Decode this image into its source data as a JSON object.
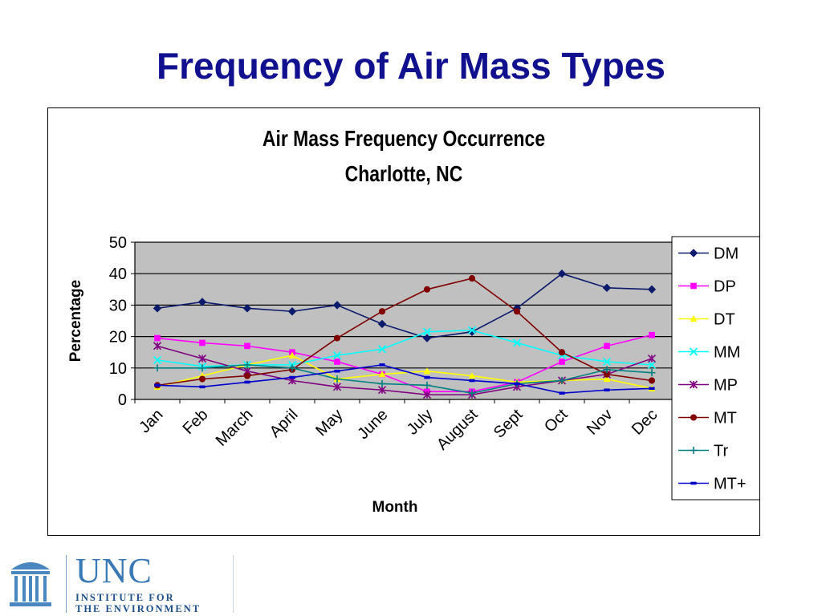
{
  "slide": {
    "title": "Frequency of Air Mass Types"
  },
  "chart_data": {
    "type": "line",
    "title": "Air Mass Frequency Occurrence",
    "subtitle": "Charlotte, NC",
    "xlabel": "Month",
    "ylabel": "Percentage",
    "ylim": [
      0,
      50
    ],
    "yticks": [
      "0",
      "10",
      "20",
      "30",
      "40",
      "50"
    ],
    "grid": true,
    "legend": "right",
    "categories": [
      "Jan",
      "Feb",
      "March",
      "April",
      "May",
      "June",
      "July",
      "August",
      "Sept",
      "Oct",
      "Nov",
      "Dec"
    ],
    "series": [
      {
        "name": "DM",
        "color": "#0b1a6b",
        "marker": "diamond",
        "values": [
          29,
          31,
          29,
          28,
          30,
          24,
          19.5,
          21.5,
          29,
          40,
          35.5,
          35
        ]
      },
      {
        "name": "DP",
        "color": "#ff00ff",
        "marker": "square",
        "values": [
          19.5,
          18,
          17,
          15,
          12,
          8,
          2.5,
          2.5,
          5.5,
          12,
          17,
          20.5
        ]
      },
      {
        "name": "DT",
        "color": "#ffff00",
        "marker": "triangle",
        "values": [
          4,
          7.5,
          11,
          14,
          6.5,
          8,
          9,
          7.5,
          5.5,
          6,
          6.5,
          3.5
        ]
      },
      {
        "name": "MM",
        "color": "#00ffff",
        "marker": "x",
        "values": [
          12.5,
          10.5,
          11,
          11,
          14,
          16,
          21.5,
          22,
          18,
          14,
          12,
          11
        ]
      },
      {
        "name": "MP",
        "color": "#800080",
        "marker": "asterisk",
        "values": [
          17,
          13,
          9,
          6,
          4,
          3,
          1.5,
          1.5,
          4,
          6,
          8,
          13
        ]
      },
      {
        "name": "MT",
        "color": "#800000",
        "marker": "circle",
        "values": [
          4.5,
          6.5,
          7.5,
          9.5,
          19.5,
          28,
          35,
          38.5,
          28,
          15,
          8,
          6
        ]
      },
      {
        "name": "Tr",
        "color": "#008080",
        "marker": "plus",
        "values": [
          10,
          10,
          11,
          10,
          6.5,
          5,
          4.5,
          2,
          5,
          6,
          9.5,
          8.5
        ]
      },
      {
        "name": "MT+",
        "color": "#0000cd",
        "marker": "dash",
        "values": [
          4.5,
          4,
          5.5,
          7,
          9,
          11,
          7,
          6,
          5,
          2,
          3,
          3.5
        ]
      }
    ]
  },
  "logo": {
    "name": "UNC",
    "line1": "INSTITUTE FOR",
    "line2": "THE ENVIRONMENT"
  }
}
